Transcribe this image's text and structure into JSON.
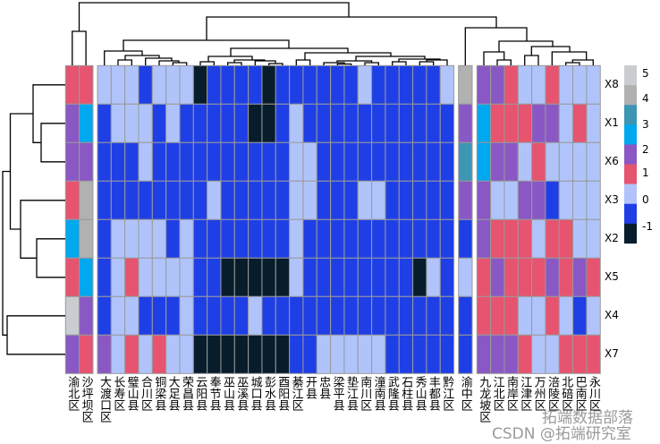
{
  "chart_data": {
    "type": "heatmap",
    "title": "",
    "rows": [
      "X8",
      "X1",
      "X6",
      "X3",
      "X2",
      "X5",
      "X4",
      "X7"
    ],
    "column_groups": [
      {
        "name": "group-1",
        "columns": [
          "渝北区",
          "沙坪坝区"
        ],
        "values": [
          [
            1,
            1
          ],
          [
            2,
            2.5
          ],
          [
            2,
            2
          ],
          [
            1,
            4
          ],
          [
            2.5,
            4
          ],
          [
            1,
            2.5
          ],
          [
            5,
            2
          ],
          [
            2,
            1
          ]
        ]
      },
      {
        "name": "group-2",
        "columns": [
          "大渡口区",
          "长寿区",
          "璧山县",
          "合川区",
          "铜梁县",
          "大足县",
          "荣昌县",
          "云阳县",
          "奉节县",
          "巫山县",
          "巫溪县",
          "城口县",
          "彭水县",
          "酉阳县",
          "綦江区",
          "开县",
          "忠县",
          "梁平县",
          "垫江县",
          "南川区",
          "潼南县",
          "武隆县",
          "石柱县",
          "秀山县",
          "丰都县",
          "黔江区"
        ],
        "values": [
          [
            0,
            0,
            0,
            -0.5,
            0,
            0,
            0,
            -1,
            -0.5,
            -0.5,
            -0.5,
            -0.5,
            -1,
            -0.5,
            -0.5,
            -0.5,
            -0.5,
            -0.5,
            -0.5,
            0,
            -0.5,
            -0.5,
            -0.5,
            -0.5,
            -0.5,
            0
          ],
          [
            -0.5,
            0,
            0,
            0,
            -0.5,
            0,
            -0.5,
            -0.5,
            -0.5,
            -0.5,
            -0.5,
            -1,
            -1,
            -0.5,
            0,
            -0.5,
            -0.5,
            -0.5,
            -0.5,
            -0.5,
            -0.5,
            -0.5,
            -0.5,
            -0.5,
            -0.5,
            -0.5
          ],
          [
            -0.5,
            -0.5,
            -0.5,
            0,
            -0.5,
            -0.5,
            -0.5,
            -0.5,
            -0.5,
            -0.5,
            -0.5,
            -0.5,
            -0.5,
            -0.5,
            0,
            0,
            -0.5,
            -0.5,
            -0.5,
            -0.5,
            -0.5,
            -0.5,
            -0.5,
            -0.5,
            -0.5,
            -0.5
          ],
          [
            -0.5,
            -0.5,
            -0.5,
            -0.5,
            -0.5,
            -0.5,
            -0.5,
            -0.5,
            0,
            -0.5,
            -0.5,
            -0.5,
            -0.5,
            -0.5,
            0,
            0,
            -0.5,
            -0.5,
            -0.5,
            0,
            0,
            -0.5,
            -0.5,
            -0.5,
            -0.5,
            -0.5
          ],
          [
            -0.5,
            0,
            0,
            0,
            0,
            -0.5,
            0,
            -0.5,
            -0.5,
            -0.5,
            -0.5,
            -0.5,
            -0.5,
            -0.5,
            0,
            -0.5,
            -0.5,
            -0.5,
            -0.5,
            -0.5,
            -0.5,
            -0.5,
            -0.5,
            -0.5,
            -0.5,
            -0.5
          ],
          [
            -0.5,
            0,
            1,
            0,
            0,
            0,
            0,
            -0.5,
            -0.5,
            -1,
            -1,
            -1,
            -1,
            -1,
            0,
            -0.5,
            -0.5,
            -0.5,
            -0.5,
            -0.5,
            -0.5,
            -0.5,
            -0.5,
            -1,
            0,
            -0.5
          ],
          [
            -0.5,
            0,
            0,
            -0.5,
            -0.5,
            -0.5,
            0,
            -0.5,
            -0.5,
            -0.5,
            -0.5,
            0,
            -0.5,
            -0.5,
            -0.5,
            -0.5,
            -0.5,
            -0.5,
            -0.5,
            -0.5,
            -0.5,
            -0.5,
            -0.5,
            -0.5,
            -0.5,
            -0.5
          ],
          [
            2,
            0,
            1,
            0,
            1,
            0,
            0,
            -1,
            -1,
            -1,
            -1,
            -1,
            -1,
            -1,
            -0.5,
            -0.5,
            0,
            0,
            0,
            0,
            0,
            -0.5,
            -0.5,
            -0.5,
            -0.5,
            -0.5
          ]
        ]
      },
      {
        "name": "group-3",
        "columns": [
          "渝中区"
        ],
        "values": [
          [
            4
          ],
          [
            2
          ],
          [
            3
          ],
          [
            2
          ],
          [
            -0.5
          ],
          [
            0
          ],
          [
            -0.5
          ],
          [
            -0.5
          ]
        ]
      },
      {
        "name": "group-4",
        "columns": [
          "九龙坡区",
          "江北区",
          "南岸区",
          "江津区",
          "万州区",
          "涪陵区",
          "北碚区",
          "巴南区",
          "永川区"
        ],
        "values": [
          [
            2,
            2,
            1,
            0,
            0,
            1,
            0,
            0,
            0
          ],
          [
            2.5,
            1,
            1,
            1,
            2,
            2,
            0,
            1,
            0
          ],
          [
            2.5,
            2,
            2,
            0,
            1,
            0,
            0,
            0,
            0
          ],
          [
            2,
            0,
            0,
            2,
            2,
            -0.5,
            0,
            0,
            0
          ],
          [
            2,
            1,
            1,
            1,
            0,
            1,
            1,
            0,
            0
          ],
          [
            1,
            2,
            1,
            1,
            1,
            2,
            1,
            2,
            1
          ],
          [
            1,
            1,
            1,
            0,
            0,
            1,
            0,
            -0.5,
            0
          ],
          [
            2,
            2,
            2,
            1,
            0,
            0,
            1,
            1,
            1
          ]
        ]
      }
    ],
    "color_scale": [
      {
        "value": 5,
        "color": "#c9ccd1"
      },
      {
        "value": 4,
        "color": "#b1b1b1"
      },
      {
        "value": 3,
        "color": "#3d96b4"
      },
      {
        "value": 2.5,
        "color": "#00a8ef"
      },
      {
        "value": 2,
        "color": "#8a58c4"
      },
      {
        "value": 1,
        "color": "#e65470"
      },
      {
        "value": 0,
        "color": "#b0c4fb"
      },
      {
        "value": -0.5,
        "color": "#1f3fe6"
      },
      {
        "value": -1,
        "color": "#071d2c"
      }
    ],
    "legend": {
      "ticks": [
        "5",
        "4",
        "3",
        "2",
        "1",
        "0",
        "-1"
      ],
      "placement": "right"
    },
    "grid_color": "#9a9a9a"
  },
  "watermark": {
    "line1": "拓端数据部落",
    "line2": "CSDN @拓端研究室"
  }
}
